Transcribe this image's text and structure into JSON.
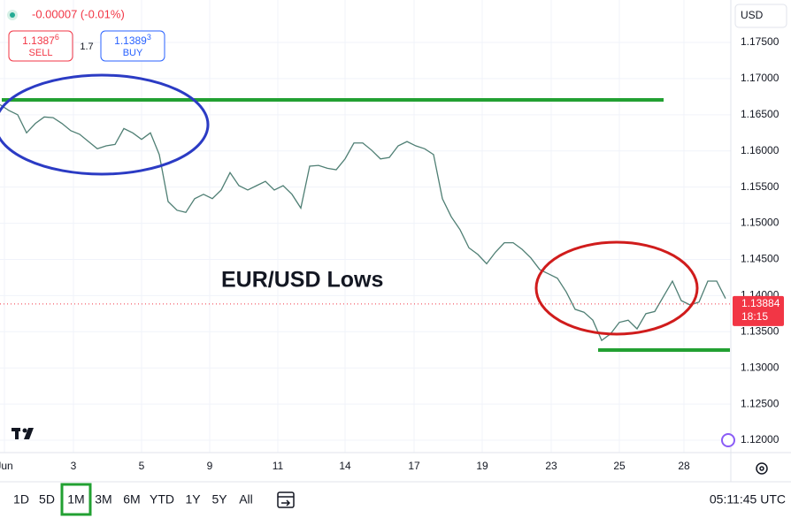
{
  "header": {
    "change": "-0.00007 (-0.01%)",
    "sell": {
      "price": "1.1387",
      "pipette": "6",
      "label": "SELL"
    },
    "spread": "1.7",
    "buy": {
      "price": "1.1389",
      "pipette": "3",
      "label": "BUY"
    },
    "currency": "USD"
  },
  "chart_data": {
    "type": "line",
    "annotation": "EUR/USD Lows",
    "color": "#4f7f74",
    "grid": true,
    "values": [
      1.1664,
      1.1656,
      1.165,
      1.1625,
      1.1638,
      1.1647,
      1.1646,
      1.1638,
      1.1628,
      1.1623,
      1.1613,
      1.1603,
      1.1607,
      1.1609,
      1.1631,
      1.1625,
      1.1616,
      1.1625,
      1.1595,
      1.153,
      1.1518,
      1.1515,
      1.1534,
      1.154,
      1.1534,
      1.1546,
      1.157,
      1.1552,
      1.1546,
      1.1552,
      1.1558,
      1.1546,
      1.1552,
      1.154,
      1.1521,
      1.1579,
      1.158,
      1.1576,
      1.1574,
      1.1589,
      1.1611,
      1.1611,
      1.1601,
      1.1589,
      1.1591,
      1.1607,
      1.1613,
      1.1607,
      1.1603,
      1.1595,
      1.1534,
      1.1509,
      1.1491,
      1.1466,
      1.1457,
      1.1444,
      1.146,
      1.1473,
      1.1473,
      1.1464,
      1.1452,
      1.1436,
      1.143,
      1.1424,
      1.1405,
      1.1381,
      1.1377,
      1.1366,
      1.1338,
      1.1347,
      1.1363,
      1.1366,
      1.1354,
      1.1375,
      1.1378,
      1.1399,
      1.142,
      1.1393,
      1.1387,
      1.1391,
      1.142,
      1.142,
      1.1396
    ],
    "xlim": [
      0,
      82.6
    ],
    "xticks": [
      {
        "value": 0.5,
        "label": "Jun"
      },
      {
        "value": 8.3,
        "label": "3"
      },
      {
        "value": 16.0,
        "label": "5"
      },
      {
        "value": 23.7,
        "label": "9"
      },
      {
        "value": 31.4,
        "label": "11"
      },
      {
        "value": 39.0,
        "label": "14"
      },
      {
        "value": 46.8,
        "label": "17"
      },
      {
        "value": 54.5,
        "label": "19"
      },
      {
        "value": 62.3,
        "label": "23"
      },
      {
        "value": 70.0,
        "label": "25"
      },
      {
        "value": 77.3,
        "label": "28"
      }
    ],
    "ylim": [
      1.11829,
      1.18087
    ],
    "yticks": [
      {
        "value": 1.175,
        "label": "1.17500"
      },
      {
        "value": 1.17,
        "label": "1.17000"
      },
      {
        "value": 1.165,
        "label": "1.16500"
      },
      {
        "value": 1.16,
        "label": "1.16000"
      },
      {
        "value": 1.155,
        "label": "1.15500"
      },
      {
        "value": 1.15,
        "label": "1.15000"
      },
      {
        "value": 1.145,
        "label": "1.14500"
      },
      {
        "value": 1.14,
        "label": "1.14000"
      },
      {
        "value": 1.135,
        "label": "1.13500"
      },
      {
        "value": 1.13,
        "label": "1.13000"
      },
      {
        "value": 1.125,
        "label": "1.12500"
      },
      {
        "value": 1.12,
        "label": "1.12000"
      }
    ],
    "last_price": 1.13884,
    "countdown": "18:15"
  },
  "toolbar": {
    "ranges": [
      "1D",
      "5D",
      "1M",
      "3M",
      "6M",
      "YTD",
      "1Y",
      "5Y",
      "All"
    ],
    "active_range": "1M",
    "clock": "05:11:45 UTC"
  }
}
